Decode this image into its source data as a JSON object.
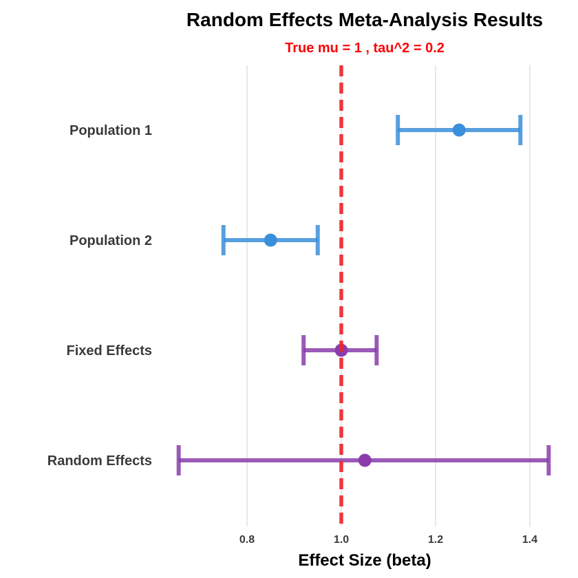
{
  "chart_data": {
    "type": "forest",
    "title": "Random Effects Meta-Analysis Results",
    "subtitle": "True mu = 1 , tau^2 = 0.2",
    "xlabel": "Effect Size (beta)",
    "ylabel": "",
    "xlim": [
      0.65,
      1.46
    ],
    "xticks": [
      0.8,
      1.0,
      1.2,
      1.4
    ],
    "xtick_labels": [
      "0.8",
      "1.0",
      "1.2",
      "1.4"
    ],
    "grid": "vertical major",
    "reference_line": {
      "x": 1.0,
      "style": "dashed",
      "color": "#F0242E"
    },
    "colors": {
      "population": "#3A8FDB",
      "pooled": "#8A3DAA",
      "subtitle": "#FF0000",
      "grid": "#E3E3E3"
    },
    "rows": [
      {
        "label": "Population 1",
        "estimate": 1.25,
        "lower": 1.12,
        "upper": 1.38,
        "group": "population"
      },
      {
        "label": "Population 2",
        "estimate": 0.85,
        "lower": 0.75,
        "upper": 0.95,
        "group": "population"
      },
      {
        "label": "Fixed Effects",
        "estimate": 1.0,
        "lower": 0.92,
        "upper": 1.075,
        "group": "pooled"
      },
      {
        "label": "Random Effects",
        "estimate": 1.05,
        "lower": 0.655,
        "upper": 1.44,
        "group": "pooled"
      }
    ]
  }
}
